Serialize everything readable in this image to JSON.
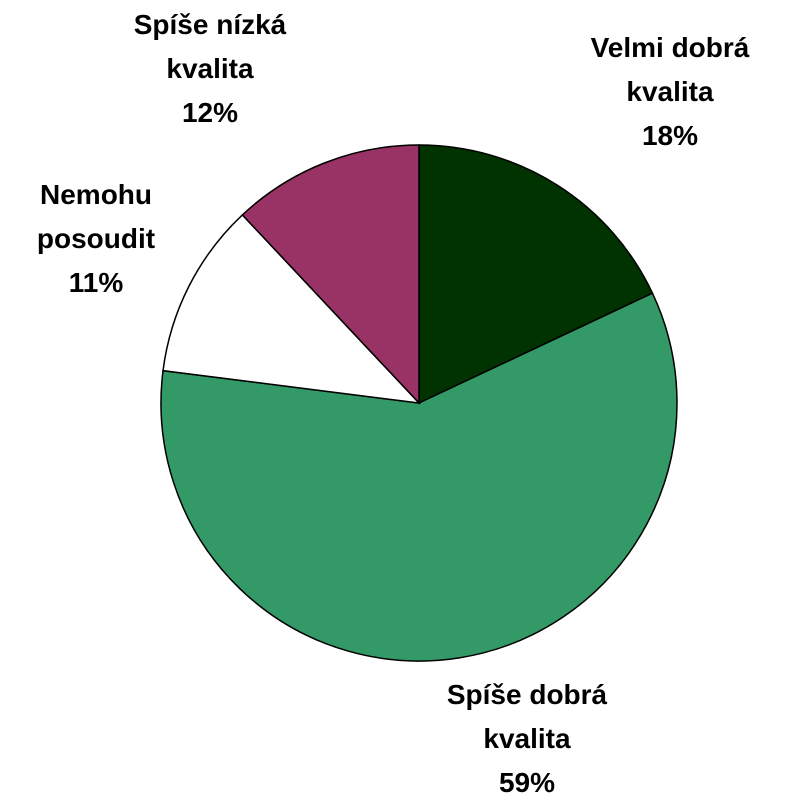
{
  "chart_data": {
    "type": "pie",
    "categories": [
      "Velmi dobrá kvalita",
      "Spíše dobrá kvalita",
      "Nemohu posoudit",
      "Spíše nízká kvalita"
    ],
    "values": [
      18,
      59,
      11,
      12
    ],
    "value_labels": [
      "18%",
      "59%",
      "11%",
      "12%"
    ],
    "colors": [
      "#003300",
      "#339966",
      "#ffffff",
      "#993366"
    ]
  }
}
